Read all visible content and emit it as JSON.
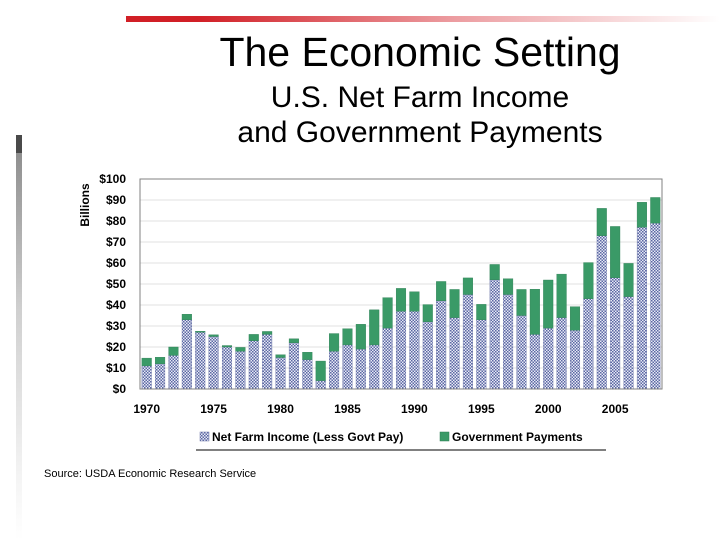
{
  "slide": {
    "title": "The Economic Setting",
    "subtitle_lines": [
      "U.S. Net Farm Income",
      "and Government Payments"
    ],
    "source": "Source: USDA Economic Research Service"
  },
  "colors": {
    "accent": "#d11f26",
    "net_farm_income": "#8f99c4",
    "government_payments": "#3a9a67",
    "plot_border": "#808080",
    "grid": "#e0e0e0"
  },
  "chart_data": {
    "type": "bar",
    "stacked": true,
    "ylabel": "Billions",
    "ylim": [
      0,
      100
    ],
    "y_ticks": [
      0,
      10,
      20,
      30,
      40,
      50,
      60,
      70,
      80,
      90,
      100
    ],
    "y_tick_labels": [
      "$0",
      "$10",
      "$20",
      "$30",
      "$40",
      "$50",
      "$60",
      "$70",
      "$80",
      "$90",
      "$100"
    ],
    "x_tick_labels": [
      "1970",
      "1975",
      "1980",
      "1985",
      "1990",
      "1995",
      "2000",
      "2005"
    ],
    "categories": [
      1970,
      1971,
      1972,
      1973,
      1974,
      1975,
      1976,
      1977,
      1978,
      1979,
      1980,
      1981,
      1982,
      1983,
      1984,
      1985,
      1986,
      1987,
      1988,
      1989,
      1990,
      1991,
      1992,
      1993,
      1994,
      1995,
      1996,
      1997,
      1998,
      1999,
      2000,
      2001,
      2002,
      2003,
      2004,
      2005,
      2006,
      2007,
      2008
    ],
    "legend_position": "bottom",
    "series": [
      {
        "name": "Net Farm Income (Less Govt Pay)",
        "color_key": "net_farm_income",
        "values": [
          11,
          12,
          16,
          33,
          27,
          25,
          20,
          18,
          23,
          26,
          15,
          22,
          14,
          4,
          18,
          21,
          19,
          21,
          29,
          37,
          37,
          32,
          42,
          34,
          45,
          33,
          52,
          45,
          35,
          26,
          29,
          34,
          28,
          43,
          73,
          53,
          44,
          77,
          79
        ],
        "labels": [
          "11",
          "12",
          "16",
          "33",
          "27",
          "25",
          "20",
          "18",
          "23",
          "26",
          "15",
          "22",
          "14",
          "4",
          "18",
          "21",
          "19",
          "21",
          "29",
          "37",
          "37",
          "32",
          "42",
          "34",
          "45",
          "33",
          "52",
          "45",
          "35",
          "26",
          "29",
          "34",
          "28",
          "43",
          "73",
          "53",
          "44",
          "77",
          "79"
        ]
      },
      {
        "name": "Government Payments",
        "color_key": "government_payments",
        "values": [
          3.7,
          3.1,
          4,
          2.6,
          0.5,
          0.8,
          0.7,
          1.8,
          3,
          1.4,
          1.3,
          1.9,
          3.5,
          9.3,
          8.4,
          7.7,
          11.8,
          16.7,
          14.5,
          10.9,
          9.3,
          8.2,
          9.2,
          13.4,
          7.9,
          7.3,
          7.3,
          7.5,
          12.4,
          21.5,
          22.9,
          20.7,
          11.2,
          17.2,
          13.0,
          24.4,
          15.8,
          11.9,
          12.2
        ],
        "labels": [
          "3.7",
          "3.1",
          "4",
          "2.6",
          "0.5",
          "0.8",
          "0.7",
          "1.8",
          "3",
          "1.4",
          "1.3",
          "1.9",
          "3.5",
          "9.3",
          "8.4",
          "7.7",
          "11.8",
          "16.7",
          "14.5",
          "10.9",
          "9.3",
          "8.2",
          "9.2",
          "13.4",
          "7.9",
          "7.3",
          "7.3",
          "7.5",
          "12.4",
          "21.5",
          "22.9",
          "20.7",
          "11.2",
          "17.2",
          "13.0",
          "24.4",
          "15.8",
          "11.9",
          "12.2"
        ]
      }
    ]
  }
}
